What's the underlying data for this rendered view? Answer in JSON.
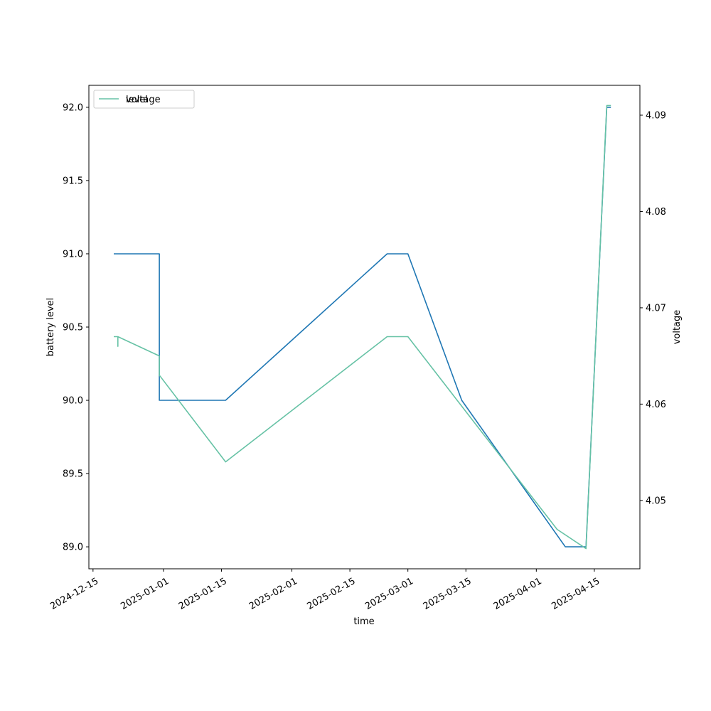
{
  "chart_data": {
    "type": "line",
    "title": "",
    "xlabel": "time",
    "ylabel_left": "battery level",
    "ylabel_right": "voltage",
    "x_ticks": [
      "2024-12-15",
      "2025-01-01",
      "2025-01-15",
      "2025-02-01",
      "2025-02-15",
      "2025-03-01",
      "2025-03-15",
      "2025-04-01",
      "2025-04-15"
    ],
    "y_left_ticks": [
      "89.0",
      "89.5",
      "90.0",
      "90.5",
      "91.0",
      "91.5",
      "92.0"
    ],
    "y_right_ticks": [
      "4.05",
      "4.06",
      "4.07",
      "4.08",
      "4.09"
    ],
    "ylim_left": [
      88.85,
      92.15
    ],
    "ylim_right": [
      4.0429,
      4.0931
    ],
    "xlim": [
      "2024-12-14",
      "2025-04-26"
    ],
    "legend": {
      "placement": "upper left",
      "entries": [
        {
          "label": "voltage",
          "color": "#66c2a5"
        },
        {
          "label": "level",
          "color": "#1f77b4"
        }
      ]
    },
    "series": [
      {
        "name": "level",
        "axis": "left",
        "color": "#1f77b4",
        "points": [
          {
            "x": "2024-12-20",
            "y": 91.0
          },
          {
            "x": "2024-12-31",
            "y": 91.0
          },
          {
            "x": "2024-12-31",
            "y": 90.0
          },
          {
            "x": "2025-01-16",
            "y": 90.0
          },
          {
            "x": "2025-02-24",
            "y": 91.0
          },
          {
            "x": "2025-03-01",
            "y": 91.0
          },
          {
            "x": "2025-03-14",
            "y": 90.0
          },
          {
            "x": "2025-04-08",
            "y": 89.0
          },
          {
            "x": "2025-04-13",
            "y": 89.0
          },
          {
            "x": "2025-04-18",
            "y": 92.0
          },
          {
            "x": "2025-04-19",
            "y": 92.0
          }
        ]
      },
      {
        "name": "voltage",
        "axis": "right",
        "color": "#66c2a5",
        "points": [
          {
            "x": "2024-12-20",
            "y": 4.067
          },
          {
            "x": "2024-12-21",
            "y": 4.067
          },
          {
            "x": "2024-12-21",
            "y": 4.066
          },
          {
            "x": "2024-12-21",
            "y": 4.067
          },
          {
            "x": "2024-12-31",
            "y": 4.065
          },
          {
            "x": "2024-12-31",
            "y": 4.063
          },
          {
            "x": "2025-01-16",
            "y": 4.054
          },
          {
            "x": "2025-02-24",
            "y": 4.067
          },
          {
            "x": "2025-03-01",
            "y": 4.067
          },
          {
            "x": "2025-04-06",
            "y": 4.047
          },
          {
            "x": "2025-04-13",
            "y": 4.045
          },
          {
            "x": "2025-04-18",
            "y": 4.091
          },
          {
            "x": "2025-04-19",
            "y": 4.091
          }
        ]
      }
    ]
  }
}
